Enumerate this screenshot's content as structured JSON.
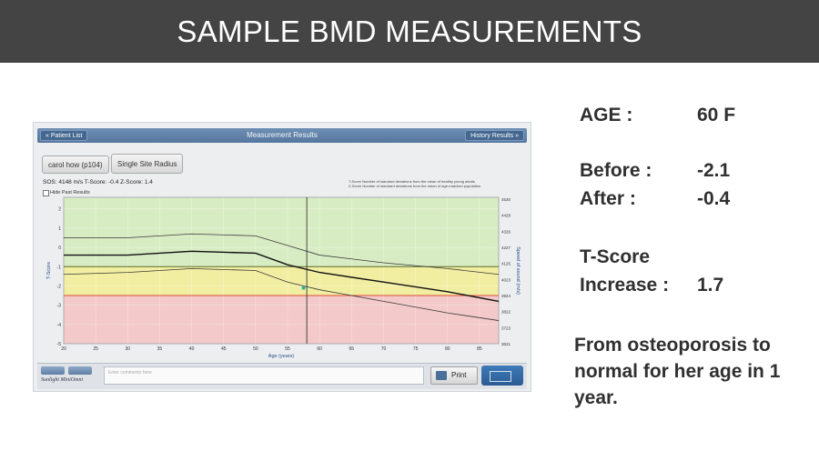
{
  "slide": {
    "title": "SAMPLE BMD MEASUREMENTS"
  },
  "device": {
    "nav_back": "Patient List",
    "screen_title": "Measurement Results",
    "nav_forward": "History Results",
    "patient_label": "carol how (p104)",
    "site_label": "Single Site Radius",
    "readout": "SOS: 4148 m/s  T-Score: -0.4  Z-Score: 1.4",
    "hide_past": "Hide Past Results",
    "legend_note_1": "T-Score   Number of standard deviations from the mean of healthy young adults",
    "legend_note_2": "Z-Score   Number of standard deviations from the mean of age-matched population",
    "notes_placeholder": "Enter comments here",
    "print_label": "Print",
    "brand": "Sunlight MiniOmni",
    "colors": {
      "green_zone": "#d8ecc3",
      "yellow_zone": "#f2eea1",
      "red_zone": "#f4c9c9",
      "red_line": "#e04a3a"
    }
  },
  "chart_data": {
    "type": "line",
    "xlabel": "Age (years)",
    "ylabel": "T-Score",
    "y2label": "Speed of sound (m/s)",
    "x_ticks": [
      20,
      25,
      30,
      35,
      40,
      45,
      50,
      55,
      60,
      65,
      70,
      75,
      80,
      85
    ],
    "y_ticks": [
      2,
      1,
      0,
      -1,
      -2,
      -3,
      -4,
      -5
    ],
    "y2_ticks": [
      4530,
      4428,
      4326,
      4227,
      4125,
      4023,
      3924,
      3822,
      3723,
      3621
    ],
    "xlim": [
      20,
      88
    ],
    "ylim": [
      -5,
      2.6
    ],
    "zones": [
      {
        "from": -1,
        "to": 2.6,
        "color": "#d8ecc3"
      },
      {
        "from": -2.5,
        "to": -1,
        "color": "#f2eea1"
      },
      {
        "from": -5,
        "to": -2.5,
        "color": "#f4c9c9"
      }
    ],
    "series": [
      {
        "x": [
          20,
          30,
          40,
          50,
          55,
          60,
          70,
          80,
          88
        ],
        "values": [
          0.5,
          0.5,
          0.7,
          0.6,
          0.1,
          -0.4,
          -0.8,
          -1.1,
          -1.4
        ]
      },
      {
        "x": [
          20,
          30,
          40,
          50,
          55,
          60,
          70,
          80,
          88
        ],
        "values": [
          -0.4,
          -0.4,
          -0.2,
          -0.3,
          -0.9,
          -1.3,
          -1.8,
          -2.3,
          -2.8
        ]
      },
      {
        "x": [
          20,
          30,
          40,
          50,
          55,
          60,
          70,
          80,
          88
        ],
        "values": [
          -1.4,
          -1.3,
          -1.1,
          -1.2,
          -1.8,
          -2.2,
          -2.8,
          -3.4,
          -3.8
        ]
      }
    ],
    "reference_lines": [
      -1,
      -2.5
    ],
    "cursor_x": 58,
    "measurement": {
      "x": 57.5,
      "y": -2.1
    }
  },
  "panel": {
    "age_label": "AGE :",
    "age_value": "60 F",
    "before_label": "Before :",
    "before_value": "-2.1",
    "after_label": "After    :",
    "after_value": "-0.4",
    "tscore_label": "T-Score",
    "increase_label": "Increase :",
    "increase_value": "1.7",
    "closing": "From osteoporosis to normal for her age in 1 year."
  }
}
